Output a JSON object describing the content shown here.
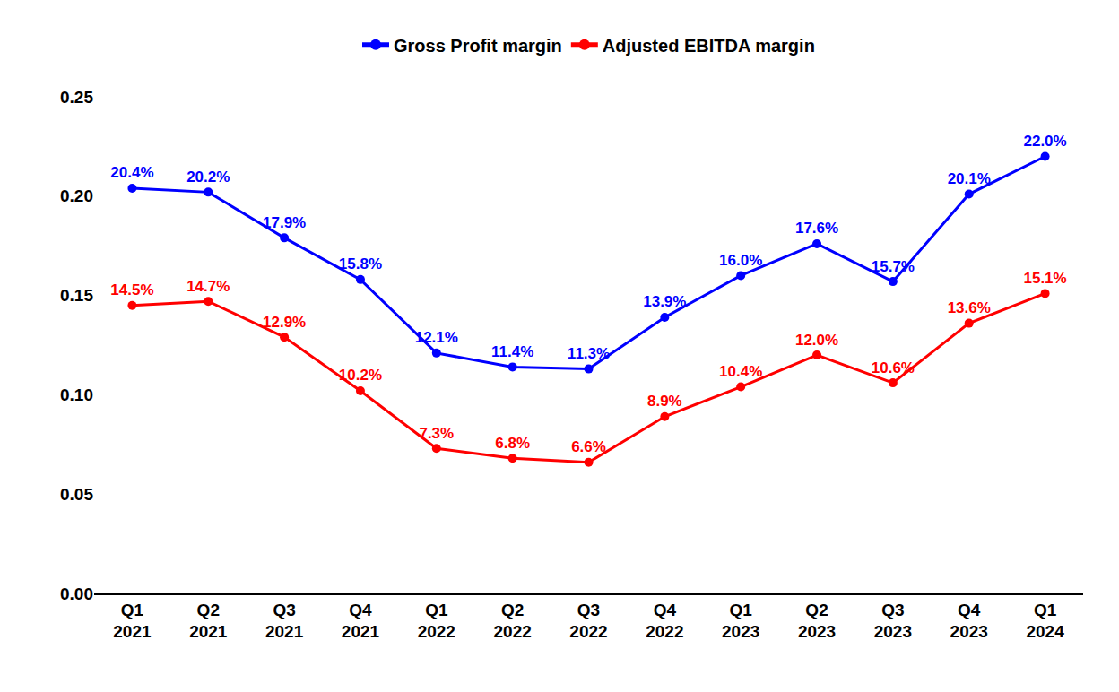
{
  "chart_data": {
    "type": "line",
    "categories": [
      "Q1 2021",
      "Q2 2021",
      "Q3 2021",
      "Q4 2021",
      "Q1 2022",
      "Q2 2022",
      "Q3 2022",
      "Q4 2022",
      "Q1 2023",
      "Q2 2023",
      "Q3 2023",
      "Q4 2023",
      "Q1 2024"
    ],
    "series": [
      {
        "name": "Gross Profit margin",
        "color": "#0000ff",
        "marker": "circle",
        "values": [
          0.204,
          0.202,
          0.179,
          0.158,
          0.121,
          0.114,
          0.113,
          0.139,
          0.16,
          0.176,
          0.157,
          0.201,
          0.22
        ],
        "value_labels": [
          "20.4%",
          "20.2%",
          "17.9%",
          "15.8%",
          "12.1%",
          "11.4%",
          "11.3%",
          "13.9%",
          "16.0%",
          "17.6%",
          "15.7%",
          "20.1%",
          "22.0%"
        ]
      },
      {
        "name": "Adjusted EBITDA margin",
        "color": "#ff0000",
        "marker": "circle",
        "values": [
          0.145,
          0.147,
          0.129,
          0.102,
          0.073,
          0.068,
          0.066,
          0.089,
          0.104,
          0.12,
          0.106,
          0.136,
          0.151
        ],
        "value_labels": [
          "14.5%",
          "14.7%",
          "12.9%",
          "10.2%",
          "7.3%",
          "6.8%",
          "6.6%",
          "8.9%",
          "10.4%",
          "12.0%",
          "10.6%",
          "13.6%",
          "15.1%"
        ]
      }
    ],
    "ylim": [
      0,
      0.25
    ],
    "yticks": [
      {
        "value": 0,
        "label": "0.00"
      },
      {
        "value": 0.05,
        "label": "0.05"
      },
      {
        "value": 0.1,
        "label": "0.10"
      },
      {
        "value": 0.15,
        "label": "0.15"
      },
      {
        "value": 0.2,
        "label": "0.20"
      },
      {
        "value": 0.25,
        "label": "0.25"
      }
    ],
    "grid": false,
    "legend": "top",
    "data_labels": true
  }
}
